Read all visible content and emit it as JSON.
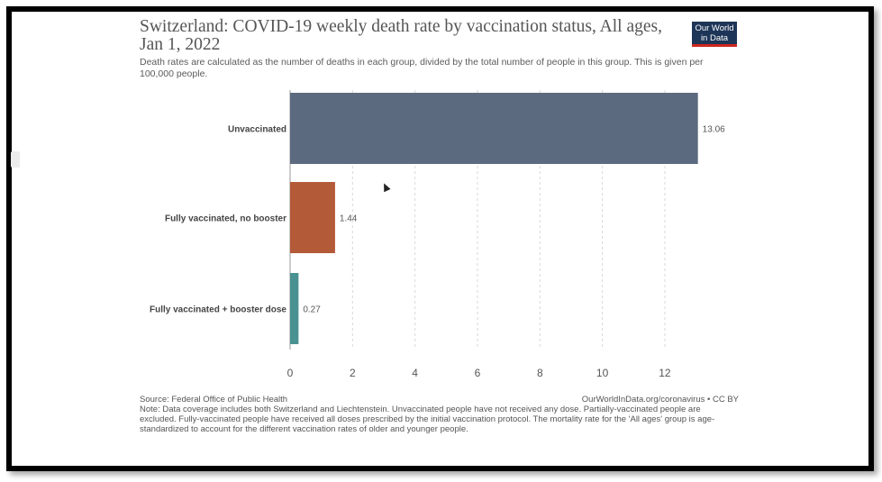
{
  "header": {
    "title": "Switzerland: COVID-19 weekly death rate by vaccination status, All ages, Jan 1, 2022",
    "subtitle": "Death rates are calculated as the number of deaths in each group, divided by the total number of people in this group. This is given per 100,000 people.",
    "logo_line1": "Our World",
    "logo_line2": "in Data"
  },
  "chart_data": {
    "type": "bar",
    "orientation": "horizontal",
    "categories": [
      "Unvaccinated",
      "Fully vaccinated, no booster",
      "Fully vaccinated + booster dose"
    ],
    "values": [
      13.06,
      1.44,
      0.27
    ],
    "value_labels": [
      "13.06",
      "1.44",
      "0.27"
    ],
    "colors": [
      "#5b6a7e",
      "#b35a38",
      "#4a9191"
    ],
    "xlim": [
      0,
      13.3
    ],
    "xticks": [
      0,
      2,
      4,
      6,
      8,
      10,
      12
    ],
    "grid": "vertical dashed",
    "title": "Switzerland: COVID-19 weekly death rate by vaccination status, All ages, Jan 1, 2022"
  },
  "footer": {
    "source": "Source: Federal Office of Public Health",
    "url": "OurWorldInData.org/coronavirus • CC BY",
    "note": "Note: Data coverage includes both Switzerland and Liechtenstein. Unvaccinated people have not received any dose. Partially-vaccinated people are excluded. Fully-vaccinated people have received all doses prescribed by the initial vaccination protocol. The mortality rate for the 'All ages' group is age-standardized to account for the different vaccination rates of older and younger people."
  }
}
